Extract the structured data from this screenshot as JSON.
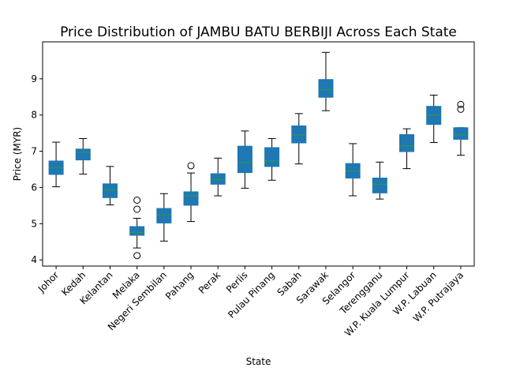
{
  "chart_data": {
    "type": "boxplot",
    "title": "Price Distribution of JAMBU BATU BERBIJI Across Each State",
    "xlabel": "State",
    "ylabel": "Price (MYR)",
    "ylim": [
      3.83,
      10.02
    ],
    "yticks": [
      4,
      5,
      6,
      7,
      8,
      9
    ],
    "grid": false,
    "colors": {
      "box": "#1f77b4",
      "median": "#2ca02c",
      "whisker": "#000000"
    },
    "categories": [
      "Johor",
      "Kedah",
      "Kelantan",
      "Melaka",
      "Negeri Sembilan",
      "Pahang",
      "Perak",
      "Perlis",
      "Pulau Pinang",
      "Sabah",
      "Sarawak",
      "Selangor",
      "Terengganu",
      "W.P. Kuala Lumpur",
      "W.P. Labuan",
      "W.P. Putrajaya"
    ],
    "boxes": [
      {
        "whislo": 6.02,
        "q1": 6.36,
        "med": 6.55,
        "q3": 6.73,
        "whishi": 7.25,
        "fliers": []
      },
      {
        "whislo": 6.37,
        "q1": 6.76,
        "med": 6.98,
        "q3": 7.06,
        "whishi": 7.35,
        "fliers": []
      },
      {
        "whislo": 5.52,
        "q1": 5.72,
        "med": 5.94,
        "q3": 6.1,
        "whishi": 6.58,
        "fliers": []
      },
      {
        "whislo": 4.33,
        "q1": 4.68,
        "med": 4.76,
        "q3": 4.92,
        "whishi": 5.15,
        "fliers": [
          5.65,
          5.4,
          4.12
        ]
      },
      {
        "whislo": 4.52,
        "q1": 5.02,
        "med": 5.24,
        "q3": 5.42,
        "whishi": 5.83,
        "fliers": []
      },
      {
        "whislo": 5.06,
        "q1": 5.51,
        "med": 5.77,
        "q3": 5.88,
        "whishi": 6.4,
        "fliers": [
          6.6
        ]
      },
      {
        "whislo": 5.77,
        "q1": 6.09,
        "med": 6.22,
        "q3": 6.38,
        "whishi": 6.81,
        "fliers": []
      },
      {
        "whislo": 5.98,
        "q1": 6.41,
        "med": 6.69,
        "q3": 7.14,
        "whishi": 7.56,
        "fliers": []
      },
      {
        "whislo": 6.2,
        "q1": 6.58,
        "med": 6.73,
        "q3": 7.1,
        "whishi": 7.35,
        "fliers": []
      },
      {
        "whislo": 6.65,
        "q1": 7.23,
        "med": 7.45,
        "q3": 7.7,
        "whishi": 8.04,
        "fliers": []
      },
      {
        "whislo": 8.12,
        "q1": 8.49,
        "med": 8.7,
        "q3": 8.98,
        "whishi": 9.73,
        "fliers": []
      },
      {
        "whislo": 5.77,
        "q1": 6.26,
        "med": 6.46,
        "q3": 6.66,
        "whishi": 7.21,
        "fliers": []
      },
      {
        "whislo": 5.68,
        "q1": 5.85,
        "med": 6.09,
        "q3": 6.26,
        "whishi": 6.7,
        "fliers": []
      },
      {
        "whislo": 6.52,
        "q1": 6.99,
        "med": 7.15,
        "q3": 7.46,
        "whishi": 7.62,
        "fliers": []
      },
      {
        "whislo": 7.24,
        "q1": 7.74,
        "med": 8.0,
        "q3": 8.24,
        "whishi": 8.55,
        "fliers": []
      },
      {
        "whislo": 6.89,
        "q1": 7.33,
        "med": 7.45,
        "q3": 7.65,
        "whishi": 7.65,
        "fliers": [
          8.29,
          8.16
        ]
      }
    ]
  }
}
